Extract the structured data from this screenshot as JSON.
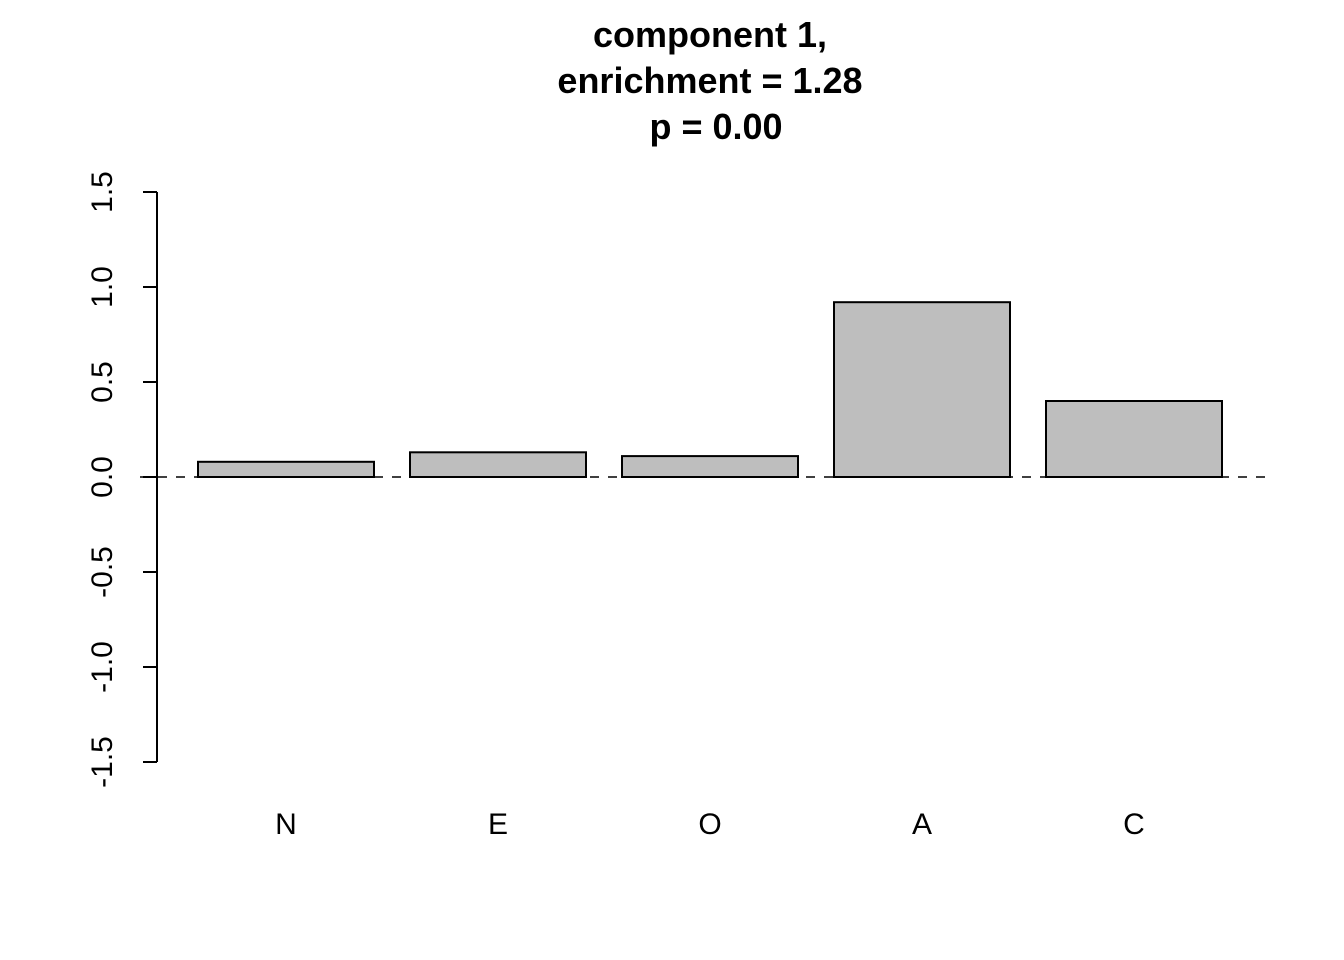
{
  "chart_data": {
    "type": "bar",
    "title_lines": [
      "component 1,",
      "enrichment = 1.28",
      "p = 0.00"
    ],
    "categories": [
      "N",
      "E",
      "O",
      "A",
      "C"
    ],
    "values": [
      0.08,
      0.13,
      0.11,
      0.92,
      0.4
    ],
    "ylim": [
      -1.5,
      1.5
    ],
    "yticks": [
      -1.5,
      -1.0,
      -0.5,
      0.0,
      0.5,
      1.0,
      1.5
    ],
    "ytick_labels": [
      "-1.5",
      "-1.0",
      "-0.5",
      "0.0",
      "0.5",
      "1.0",
      "1.5"
    ],
    "reference_line": 0,
    "xlabel": "",
    "ylabel": "",
    "grid": false,
    "colors": {
      "bar_fill": "#bebebe",
      "bar_stroke": "#000000",
      "axis": "#000000"
    }
  }
}
